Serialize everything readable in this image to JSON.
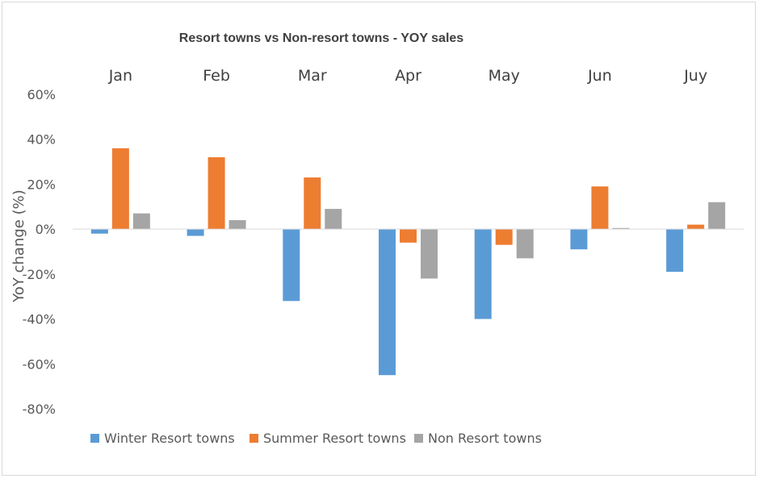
{
  "chart_data": {
    "type": "bar",
    "title": "Resort towns vs Non-resort towns - YOY sales",
    "ylabel": "YoY change (%)",
    "xlabel": "",
    "categories": [
      "Jan",
      "Feb",
      "Mar",
      "Apr",
      "May",
      "Jun",
      "Juy"
    ],
    "ylim": [
      -80,
      60
    ],
    "yticks": [
      60,
      40,
      20,
      0,
      -20,
      -40,
      -60,
      -80
    ],
    "ytick_labels": [
      "60%",
      "40%",
      "20%",
      "0%",
      "-20%",
      "-40%",
      "-60%",
      "-80%"
    ],
    "grid": false,
    "category_labels_position": "top",
    "legend_position": "bottom",
    "series": [
      {
        "name": "Winter Resort towns",
        "color": "#5b9bd5",
        "values": [
          -2,
          -3,
          -32,
          -65,
          -40,
          -9,
          -19
        ]
      },
      {
        "name": "Summer Resort towns",
        "color": "#ed7d31",
        "values": [
          36,
          32,
          23,
          -6,
          -7,
          19,
          2
        ]
      },
      {
        "name": "Non Resort towns",
        "color": "#a5a5a5",
        "values": [
          7,
          4,
          9,
          -22,
          -13,
          0.5,
          12
        ]
      }
    ]
  }
}
